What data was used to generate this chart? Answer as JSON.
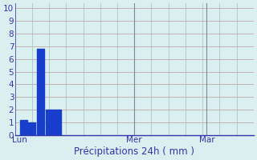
{
  "bar_positions": [
    1,
    2,
    3,
    4,
    5
  ],
  "bar_heights": [
    1.2,
    1.0,
    6.8,
    2.0,
    2.0
  ],
  "bar_color": "#1a3ecc",
  "bar_width": 0.85,
  "background_color": "#daf0f0",
  "grid_color_h": "#bb9999",
  "grid_color_v": "#aabbbb",
  "axis_color": "#3333aa",
  "xlabel": "Précipitations 24h ( mm )",
  "xlabel_fontsize": 8.5,
  "ylabel_ticks": [
    0,
    1,
    2,
    3,
    4,
    5,
    6,
    7,
    8,
    9,
    10
  ],
  "ylim": [
    0,
    10.4
  ],
  "xlim": [
    0,
    28
  ],
  "bar_x_start": 1,
  "xtick_positions": [
    0.5,
    14.0,
    22.5
  ],
  "xtick_labels": [
    "Lun",
    "Mer",
    "Mar"
  ],
  "tick_color": "#3333aa",
  "tick_fontsize": 7.5,
  "vline_positions": [
    14.0,
    22.5
  ],
  "vline_color": "#778899",
  "n_vertical_grid": 14
}
